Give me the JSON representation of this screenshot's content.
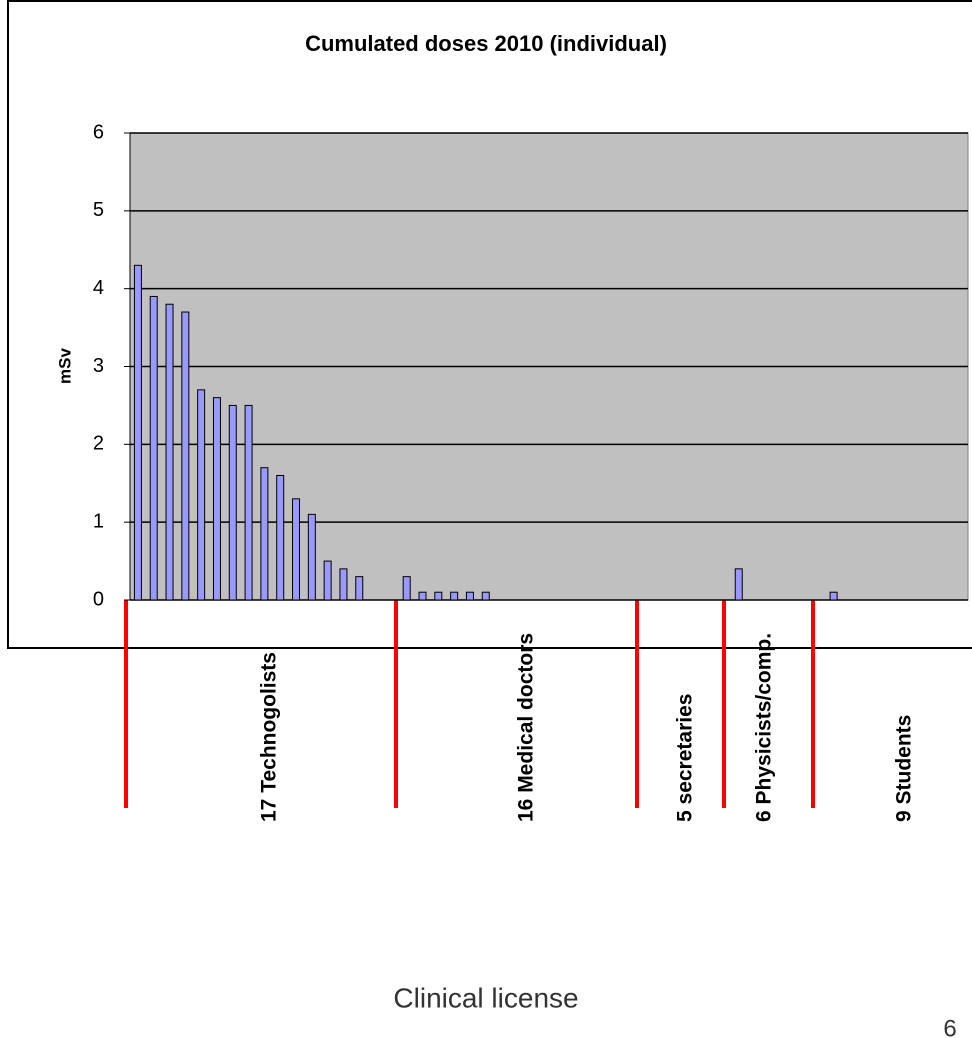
{
  "chart_data": {
    "type": "bar",
    "title": "Cumulated doses 2010 (individual)",
    "y_label": "mSv",
    "x_label": "Clinical license",
    "categories": [
      null,
      null,
      null,
      null,
      null,
      null,
      null,
      null,
      null,
      null,
      null,
      null,
      null,
      null,
      null,
      null,
      null,
      null,
      null,
      null,
      null,
      null,
      null,
      null,
      null,
      null,
      null,
      null,
      null,
      null,
      null,
      null,
      null,
      null,
      null,
      null,
      null,
      null,
      null,
      null,
      null,
      null,
      null,
      null,
      null,
      null,
      null,
      null,
      null,
      null,
      null,
      null,
      null
    ],
    "values": [
      4.3,
      3.9,
      3.8,
      3.7,
      2.7,
      2.6,
      2.5,
      2.5,
      1.7,
      1.6,
      1.3,
      1.1,
      0.5,
      0.4,
      0.3,
      0,
      0,
      0.3,
      0.1,
      0.1,
      0.1,
      0.1,
      0.1,
      0,
      0,
      0,
      0,
      0,
      0,
      0,
      0,
      0,
      0,
      0,
      0,
      0,
      0,
      0,
      0.4,
      0,
      0,
      0,
      0,
      0,
      0.1,
      0,
      0,
      0,
      0,
      0,
      0,
      0,
      0
    ],
    "color": "#9999ff",
    "ylim": [
      0,
      6
    ],
    "yticks": [
      0,
      1,
      2,
      3,
      4,
      5,
      6
    ],
    "grid": true,
    "groups": [
      "17 Technogolists",
      "16 Medical doctors",
      "5 secretaries",
      "6 Physicists/comp.",
      "9 Students"
    ]
  },
  "page_number": 6
}
